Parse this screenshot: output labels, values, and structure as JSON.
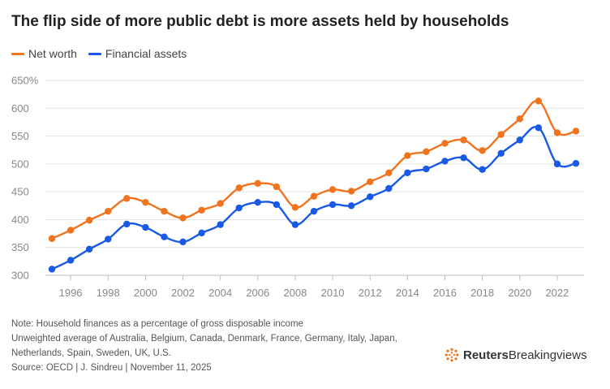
{
  "title": "The flip side of more public debt is more assets held by households",
  "legend": {
    "items": [
      {
        "label": "Net worth",
        "color": "#f0731e"
      },
      {
        "label": "Financial assets",
        "color": "#1859e6"
      }
    ]
  },
  "chart_data": {
    "type": "line",
    "title": "The flip side of more public debt is more assets held by households",
    "xlabel": "",
    "ylabel": "",
    "x": [
      1995,
      1996,
      1997,
      1998,
      1999,
      2000,
      2001,
      2002,
      2003,
      2004,
      2005,
      2006,
      2007,
      2008,
      2009,
      2010,
      2011,
      2012,
      2013,
      2014,
      2015,
      2016,
      2017,
      2018,
      2019,
      2020,
      2021,
      2022,
      2023
    ],
    "xticks": [
      1996,
      1998,
      2000,
      2002,
      2004,
      2006,
      2008,
      2010,
      2012,
      2014,
      2016,
      2018,
      2020,
      2022
    ],
    "yticks": [
      300,
      350,
      400,
      450,
      500,
      550,
      600,
      650
    ],
    "ytick_labels": [
      "300",
      "350",
      "400",
      "450",
      "500",
      "550",
      "600",
      "650%"
    ],
    "ylim": [
      300,
      650
    ],
    "xlim": [
      1995,
      2023
    ],
    "grid": true,
    "series": [
      {
        "name": "Net worth",
        "color": "#f0731e",
        "values": [
          366,
          381,
          399,
          415,
          438,
          431,
          415,
          403,
          417,
          429,
          457,
          465,
          459,
          422,
          442,
          454,
          451,
          468,
          484,
          515,
          522,
          537,
          543,
          524,
          553,
          581,
          613,
          556,
          559
        ]
      },
      {
        "name": "Financial assets",
        "color": "#1859e6",
        "values": [
          311,
          327,
          347,
          365,
          392,
          386,
          369,
          360,
          376,
          391,
          421,
          431,
          427,
          391,
          415,
          427,
          425,
          441,
          456,
          484,
          491,
          505,
          511,
          490,
          519,
          543,
          565,
          500,
          501
        ]
      }
    ]
  },
  "notes": {
    "line1": "Note: Household finances as a percentage of gross disposable income",
    "line2": "Unweighted average of Australia, Belgium, Canada, Denmark, France, Germany, Italy, Japan,",
    "line3": "Netherlands, Spain, Sweden, UK, U.S.",
    "source": "Source: OECD | J. Sindreu | November 11, 2025"
  },
  "logo": {
    "brand": "Reuters",
    "sub": "Breakingviews",
    "color": "#f0731e"
  }
}
